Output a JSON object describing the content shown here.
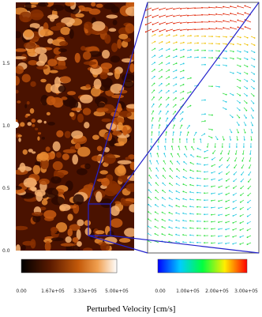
{
  "figure": {
    "y_tick_labels": [
      "1.5",
      "1.0",
      "0.5",
      "0.0"
    ],
    "density_colorbar": {
      "labels": [
        "0.00",
        "1.67e+05",
        "3.33e+05",
        "5.00e+05"
      ]
    },
    "vector_colorbar": {
      "labels": [
        "0.00",
        "1.00e+05",
        "2.00e+05",
        "3.00e+05"
      ]
    },
    "caption": "Perturbed Velocity [cm/s]"
  }
}
